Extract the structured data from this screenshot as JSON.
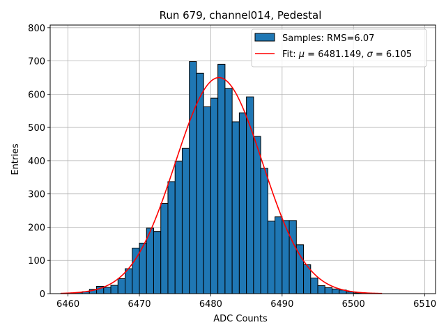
{
  "chart_data": {
    "type": "bar",
    "title": "Run 679, channel014, Pedestal",
    "xlabel": "ADC Counts",
    "ylabel": "Entries",
    "xlim": [
      6457.5,
      6511.5
    ],
    "ylim": [
      0,
      808
    ],
    "xticks": [
      6460,
      6470,
      6480,
      6490,
      6500,
      6510
    ],
    "yticks": [
      0,
      100,
      200,
      300,
      400,
      500,
      600,
      700,
      800
    ],
    "grid": true,
    "legend_position": "top-right",
    "histogram": {
      "name": "Samples: RMS=6.07",
      "bin_width": 1,
      "bin_starts": [
        6459,
        6460,
        6461,
        6462,
        6463,
        6464,
        6465,
        6466,
        6467,
        6468,
        6469,
        6470,
        6471,
        6472,
        6473,
        6474,
        6475,
        6476,
        6477,
        6478,
        6479,
        6480,
        6481,
        6482,
        6483,
        6484,
        6485,
        6486,
        6487,
        6488,
        6489,
        6490,
        6491,
        6492,
        6493,
        6494,
        6495,
        6496,
        6497,
        6498,
        6499,
        6500,
        6501,
        6502,
        6503,
        6504,
        6505,
        6506,
        6507,
        6508
      ],
      "values": [
        1,
        2,
        3,
        6,
        13,
        22,
        19,
        25,
        45,
        75,
        137,
        152,
        197,
        187,
        271,
        337,
        398,
        437,
        698,
        663,
        562,
        588,
        690,
        617,
        517,
        544,
        592,
        473,
        377,
        218,
        231,
        220,
        220,
        147,
        87,
        47,
        24,
        18,
        14,
        11,
        5,
        2,
        1,
        0,
        0,
        0,
        0,
        0,
        0,
        0
      ],
      "color": "#1f77b4",
      "edge_color": "#000000"
    },
    "fit": {
      "name_prefix": "Fit: ",
      "name_mu": "μ",
      "name_mid": " = 6481.149, ",
      "name_sigma": "σ",
      "name_end": " = 6.105",
      "mu": 6481.149,
      "sigma": 6.105,
      "amplitude": 650,
      "x_range": [
        6459,
        6504
      ],
      "color": "#ff0000"
    }
  }
}
